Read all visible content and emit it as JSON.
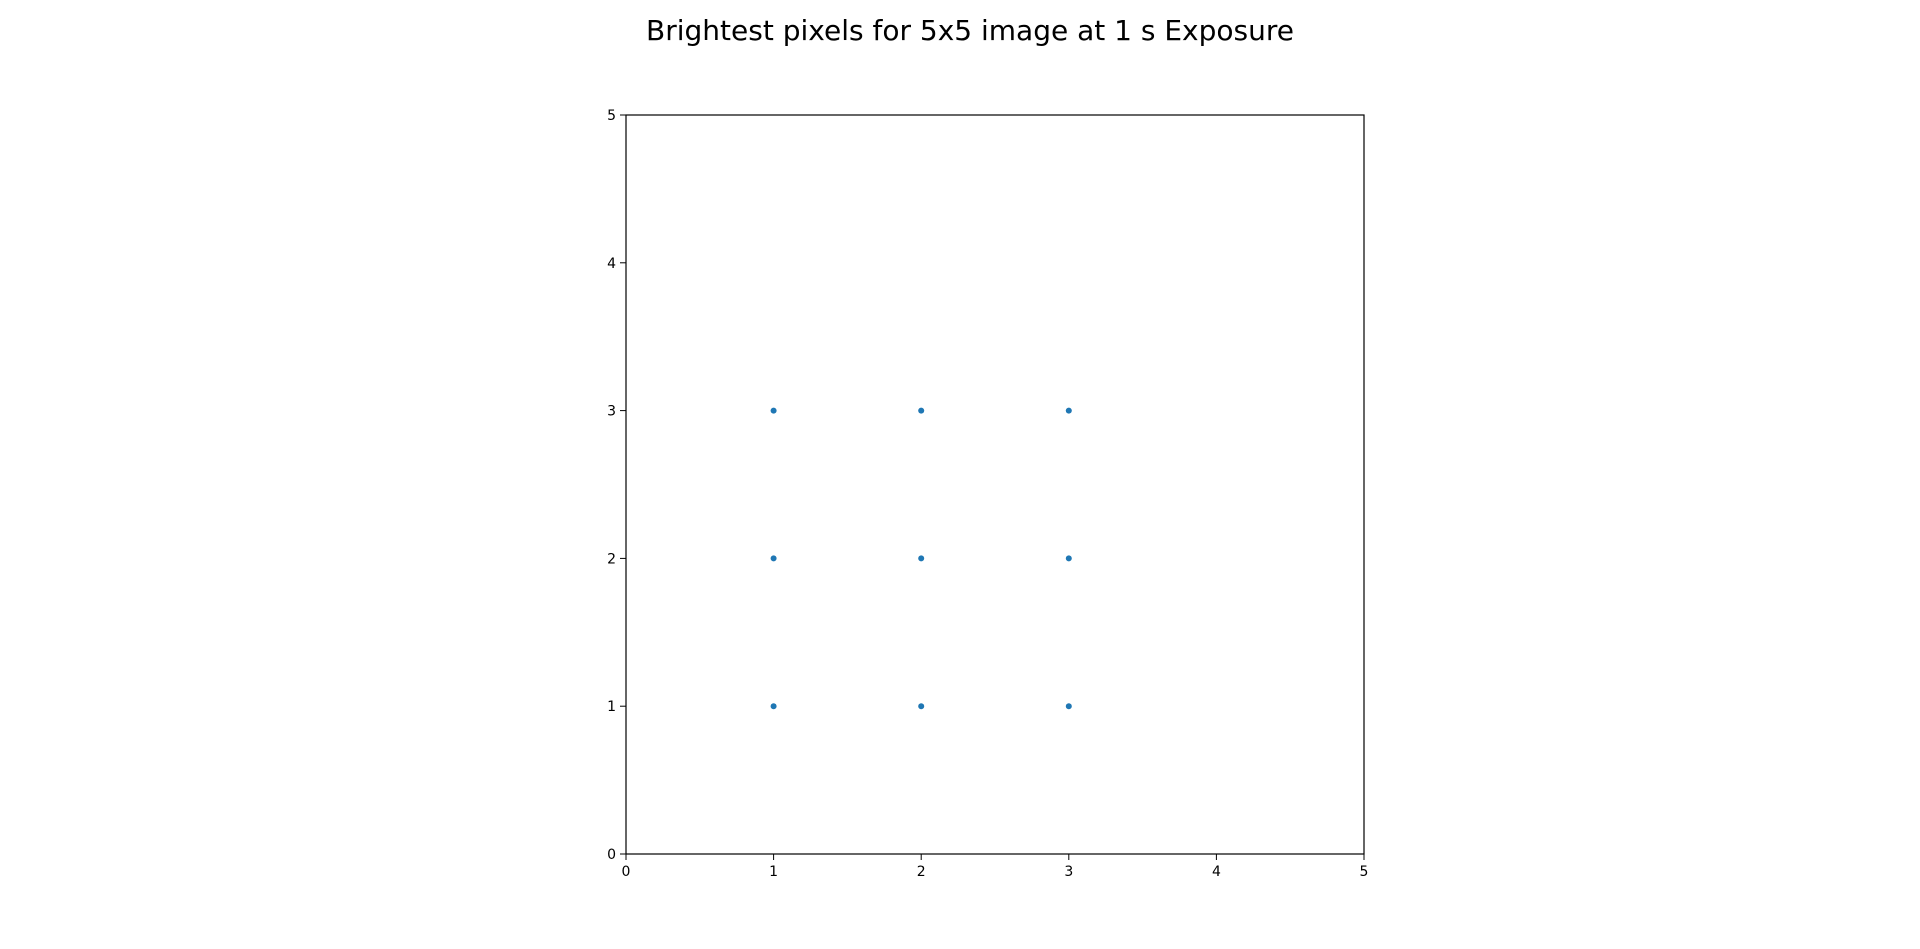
{
  "chart_data": {
    "type": "scatter",
    "title": "Brightest pixels for 5x5 image at 1 s Exposure",
    "xlabel": "",
    "ylabel": "",
    "xlim": [
      0,
      5
    ],
    "ylim": [
      0,
      5
    ],
    "xticks": [
      "0",
      "1",
      "2",
      "3",
      "4",
      "5"
    ],
    "yticks": [
      "0",
      "1",
      "2",
      "3",
      "4",
      "5"
    ],
    "grid": false,
    "legend": "none",
    "point_color": "#1f77b4",
    "points": [
      {
        "x": 1,
        "y": 1
      },
      {
        "x": 2,
        "y": 1
      },
      {
        "x": 3,
        "y": 1
      },
      {
        "x": 1,
        "y": 2
      },
      {
        "x": 2,
        "y": 2
      },
      {
        "x": 3,
        "y": 2
      },
      {
        "x": 1,
        "y": 3
      },
      {
        "x": 2,
        "y": 3
      },
      {
        "x": 3,
        "y": 3
      }
    ]
  }
}
